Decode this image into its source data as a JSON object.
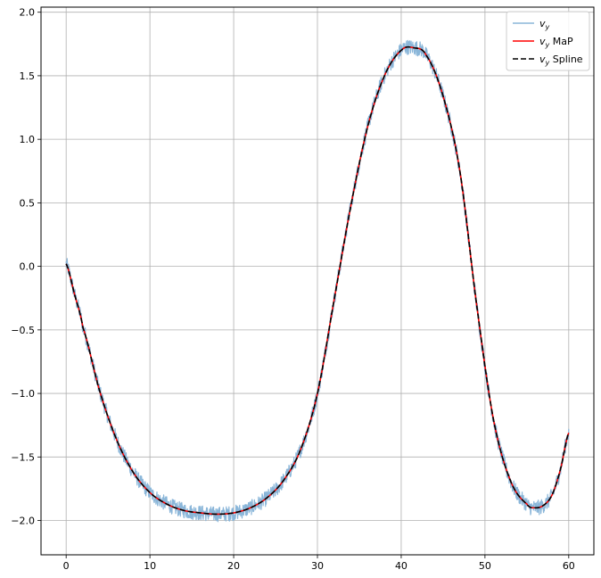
{
  "chart_data": {
    "type": "line",
    "title": "",
    "xlabel": "",
    "ylabel": "",
    "xlim": [
      -3,
      63
    ],
    "ylim": [
      -2.27,
      2.04
    ],
    "xticks": [
      0,
      10,
      20,
      30,
      40,
      50,
      60
    ],
    "xtick_labels": [
      "0",
      "10",
      "20",
      "30",
      "40",
      "50",
      "60"
    ],
    "yticks": [
      -2.0,
      -1.5,
      -1.0,
      -0.5,
      0.0,
      0.5,
      1.0,
      1.5,
      2.0
    ],
    "ytick_labels": [
      "−2.0",
      "−1.5",
      "−1.0",
      "−0.5",
      "0.0",
      "0.5",
      "1.0",
      "1.5",
      "2.0"
    ],
    "grid": true,
    "legend_position": "top-right",
    "noise_amplitude": 0.06,
    "series": [
      {
        "name_main": "v",
        "name_sub": "y",
        "name_suffix": "",
        "color": "#8ab6d9",
        "style": "noisy",
        "x": [
          0,
          1,
          2,
          4,
          6,
          8,
          10,
          12,
          14,
          16,
          18,
          20,
          22,
          24,
          26,
          28,
          30,
          32,
          34,
          36,
          38,
          40,
          41.5,
          43,
          45,
          47,
          49,
          51,
          53,
          55,
          56,
          57,
          58,
          59,
          60
        ],
        "y": [
          0.02,
          -0.22,
          -0.48,
          -0.98,
          -1.36,
          -1.62,
          -1.78,
          -1.87,
          -1.92,
          -1.94,
          -1.95,
          -1.94,
          -1.9,
          -1.82,
          -1.68,
          -1.44,
          -1.0,
          -0.26,
          0.48,
          1.1,
          1.5,
          1.7,
          1.72,
          1.66,
          1.34,
          0.75,
          -0.3,
          -1.2,
          -1.68,
          -1.87,
          -1.9,
          -1.88,
          -1.8,
          -1.6,
          -1.31
        ]
      },
      {
        "name_main": "v",
        "name_sub": "y",
        "name_suffix": " MaP",
        "color": "#ff0000",
        "style": "solid",
        "x": [
          0,
          1,
          2,
          4,
          6,
          8,
          10,
          12,
          14,
          16,
          18,
          20,
          22,
          24,
          26,
          28,
          30,
          32,
          34,
          36,
          38,
          40,
          41.5,
          43,
          45,
          47,
          49,
          51,
          53,
          55,
          56,
          57,
          58,
          59,
          60
        ],
        "y": [
          0.02,
          -0.22,
          -0.48,
          -0.98,
          -1.36,
          -1.62,
          -1.78,
          -1.87,
          -1.92,
          -1.94,
          -1.95,
          -1.94,
          -1.9,
          -1.82,
          -1.68,
          -1.44,
          -1.0,
          -0.26,
          0.48,
          1.1,
          1.5,
          1.7,
          1.72,
          1.66,
          1.34,
          0.75,
          -0.3,
          -1.2,
          -1.68,
          -1.87,
          -1.9,
          -1.88,
          -1.8,
          -1.6,
          -1.31
        ]
      },
      {
        "name_main": "v",
        "name_sub": "y",
        "name_suffix": " Spline",
        "color": "#000000",
        "style": "dashed",
        "x": [
          0,
          1,
          2,
          4,
          6,
          8,
          10,
          12,
          14,
          16,
          18,
          20,
          22,
          24,
          26,
          28,
          30,
          32,
          34,
          36,
          38,
          40,
          41.5,
          43,
          45,
          47,
          49,
          51,
          53,
          55,
          56,
          57,
          58,
          59,
          60
        ],
        "y": [
          0.02,
          -0.22,
          -0.48,
          -0.98,
          -1.36,
          -1.62,
          -1.78,
          -1.87,
          -1.92,
          -1.94,
          -1.95,
          -1.94,
          -1.9,
          -1.82,
          -1.68,
          -1.44,
          -1.0,
          -0.26,
          0.48,
          1.1,
          1.5,
          1.7,
          1.72,
          1.66,
          1.34,
          0.75,
          -0.3,
          -1.2,
          -1.68,
          -1.87,
          -1.9,
          -1.88,
          -1.8,
          -1.6,
          -1.31
        ]
      }
    ]
  }
}
